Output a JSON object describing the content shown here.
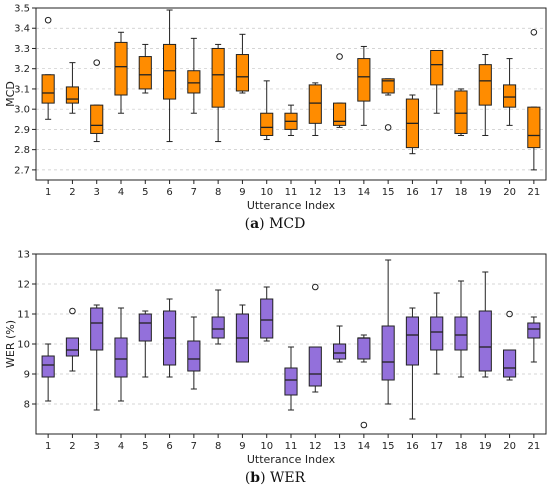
{
  "captions": [
    {
      "tag": "a",
      "text": "MCD"
    },
    {
      "tag": "b",
      "text": "WER"
    }
  ],
  "chart_data": [
    {
      "type": "box",
      "xlabel": "Utterance Index",
      "ylabel": "MCD",
      "ylim": [
        2.65,
        3.5
      ],
      "yticks": [
        2.7,
        2.8,
        2.9,
        3.0,
        3.1,
        3.2,
        3.3,
        3.4,
        3.5
      ],
      "ytick_labels": [
        "2.7",
        "2.8",
        "2.9",
        "3.0",
        "3.1",
        "3.2",
        "3.3",
        "3.4",
        "3.5"
      ],
      "categories": [
        "1",
        "2",
        "3",
        "4",
        "5",
        "6",
        "7",
        "8",
        "9",
        "10",
        "11",
        "12",
        "13",
        "14",
        "15",
        "16",
        "17",
        "18",
        "19",
        "20",
        "21"
      ],
      "grid": "horizontal-dashed",
      "box_color": "#ff8c00",
      "boxes": [
        {
          "min": 2.95,
          "q1": 3.03,
          "median": 3.08,
          "q3": 3.17,
          "max": 3.17,
          "outliers": [
            3.44
          ]
        },
        {
          "min": 2.98,
          "q1": 3.03,
          "median": 3.05,
          "q3": 3.11,
          "max": 3.23,
          "outliers": []
        },
        {
          "min": 2.84,
          "q1": 2.88,
          "median": 2.92,
          "q3": 3.02,
          "max": 3.02,
          "outliers": [
            3.23
          ]
        },
        {
          "min": 2.98,
          "q1": 3.07,
          "median": 3.21,
          "q3": 3.33,
          "max": 3.38,
          "outliers": []
        },
        {
          "min": 3.08,
          "q1": 3.1,
          "median": 3.17,
          "q3": 3.26,
          "max": 3.32,
          "outliers": []
        },
        {
          "min": 2.84,
          "q1": 3.05,
          "median": 3.19,
          "q3": 3.32,
          "max": 3.49,
          "outliers": []
        },
        {
          "min": 2.98,
          "q1": 3.08,
          "median": 3.13,
          "q3": 3.19,
          "max": 3.35,
          "outliers": []
        },
        {
          "min": 2.84,
          "q1": 3.01,
          "median": 3.17,
          "q3": 3.3,
          "max": 3.32,
          "outliers": []
        },
        {
          "min": 3.08,
          "q1": 3.09,
          "median": 3.16,
          "q3": 3.27,
          "max": 3.37,
          "outliers": []
        },
        {
          "min": 2.85,
          "q1": 2.87,
          "median": 2.91,
          "q3": 2.98,
          "max": 3.14,
          "outliers": []
        },
        {
          "min": 2.87,
          "q1": 2.9,
          "median": 2.94,
          "q3": 2.98,
          "max": 3.02,
          "outliers": []
        },
        {
          "min": 2.87,
          "q1": 2.93,
          "median": 3.03,
          "q3": 3.12,
          "max": 3.13,
          "outliers": []
        },
        {
          "min": 2.91,
          "q1": 2.92,
          "median": 2.94,
          "q3": 3.03,
          "max": 3.03,
          "outliers": [
            3.26
          ]
        },
        {
          "min": 2.92,
          "q1": 3.04,
          "median": 3.16,
          "q3": 3.25,
          "max": 3.31,
          "outliers": []
        },
        {
          "min": 3.07,
          "q1": 3.08,
          "median": 3.14,
          "q3": 3.15,
          "max": 3.15,
          "outliers": [
            2.91
          ]
        },
        {
          "min": 2.78,
          "q1": 2.81,
          "median": 2.93,
          "q3": 3.05,
          "max": 3.07,
          "outliers": []
        },
        {
          "min": 2.98,
          "q1": 3.12,
          "median": 3.22,
          "q3": 3.29,
          "max": 3.29,
          "outliers": []
        },
        {
          "min": 2.87,
          "q1": 2.88,
          "median": 2.98,
          "q3": 3.09,
          "max": 3.1,
          "outliers": []
        },
        {
          "min": 2.87,
          "q1": 3.02,
          "median": 3.14,
          "q3": 3.22,
          "max": 3.27,
          "outliers": []
        },
        {
          "min": 2.92,
          "q1": 3.01,
          "median": 3.06,
          "q3": 3.12,
          "max": 3.25,
          "outliers": []
        },
        {
          "min": 2.7,
          "q1": 2.81,
          "median": 2.87,
          "q3": 3.01,
          "max": 3.01,
          "outliers": [
            3.38
          ]
        }
      ]
    },
    {
      "type": "box",
      "xlabel": "Utterance Index",
      "ylabel": "WER (%)",
      "ylim": [
        7.0,
        13.0
      ],
      "yticks": [
        8,
        9,
        10,
        11,
        12,
        13
      ],
      "ytick_labels": [
        "8",
        "9",
        "10",
        "11",
        "12",
        "13"
      ],
      "categories": [
        "1",
        "2",
        "3",
        "4",
        "5",
        "6",
        "7",
        "8",
        "9",
        "10",
        "11",
        "12",
        "13",
        "14",
        "15",
        "16",
        "17",
        "18",
        "19",
        "20",
        "21"
      ],
      "grid": "horizontal-dashed",
      "box_color": "#9370db",
      "boxes": [
        {
          "min": 8.1,
          "q1": 8.9,
          "median": 9.3,
          "q3": 9.6,
          "max": 10.0,
          "outliers": []
        },
        {
          "min": 9.1,
          "q1": 9.6,
          "median": 9.8,
          "q3": 10.2,
          "max": 10.2,
          "outliers": [
            11.1
          ]
        },
        {
          "min": 7.8,
          "q1": 9.8,
          "median": 10.7,
          "q3": 11.2,
          "max": 11.3,
          "outliers": []
        },
        {
          "min": 8.1,
          "q1": 8.9,
          "median": 9.5,
          "q3": 10.2,
          "max": 11.2,
          "outliers": []
        },
        {
          "min": 8.9,
          "q1": 10.1,
          "median": 10.7,
          "q3": 11.0,
          "max": 11.1,
          "outliers": []
        },
        {
          "min": 8.9,
          "q1": 9.3,
          "median": 10.2,
          "q3": 11.1,
          "max": 11.5,
          "outliers": []
        },
        {
          "min": 8.5,
          "q1": 9.1,
          "median": 9.5,
          "q3": 10.1,
          "max": 10.9,
          "outliers": []
        },
        {
          "min": 10.0,
          "q1": 10.2,
          "median": 10.5,
          "q3": 10.9,
          "max": 11.8,
          "outliers": []
        },
        {
          "min": 9.4,
          "q1": 9.4,
          "median": 10.2,
          "q3": 11.0,
          "max": 11.3,
          "outliers": []
        },
        {
          "min": 10.1,
          "q1": 10.2,
          "median": 10.8,
          "q3": 11.5,
          "max": 11.9,
          "outliers": []
        },
        {
          "min": 7.8,
          "q1": 8.3,
          "median": 8.8,
          "q3": 9.2,
          "max": 9.9,
          "outliers": []
        },
        {
          "min": 8.4,
          "q1": 8.6,
          "median": 9.0,
          "q3": 9.9,
          "max": 9.9,
          "outliers": [
            11.9
          ]
        },
        {
          "min": 9.4,
          "q1": 9.5,
          "median": 9.7,
          "q3": 10.0,
          "max": 10.6,
          "outliers": []
        },
        {
          "min": 9.4,
          "q1": 9.5,
          "median": 10.2,
          "q3": 10.2,
          "max": 10.3,
          "outliers": [
            7.3
          ]
        },
        {
          "min": 8.0,
          "q1": 8.8,
          "median": 9.4,
          "q3": 10.6,
          "max": 12.8,
          "outliers": []
        },
        {
          "min": 7.5,
          "q1": 9.3,
          "median": 10.3,
          "q3": 10.9,
          "max": 11.2,
          "outliers": []
        },
        {
          "min": 9.0,
          "q1": 9.8,
          "median": 10.4,
          "q3": 10.9,
          "max": 11.7,
          "outliers": []
        },
        {
          "min": 8.9,
          "q1": 9.8,
          "median": 10.3,
          "q3": 10.9,
          "max": 12.1,
          "outliers": []
        },
        {
          "min": 8.9,
          "q1": 9.1,
          "median": 9.9,
          "q3": 11.1,
          "max": 12.4,
          "outliers": []
        },
        {
          "min": 8.8,
          "q1": 8.9,
          "median": 9.2,
          "q3": 9.8,
          "max": 9.8,
          "outliers": [
            11.0
          ]
        },
        {
          "min": 9.4,
          "q1": 10.2,
          "median": 10.5,
          "q3": 10.7,
          "max": 10.9,
          "outliers": []
        }
      ]
    }
  ]
}
